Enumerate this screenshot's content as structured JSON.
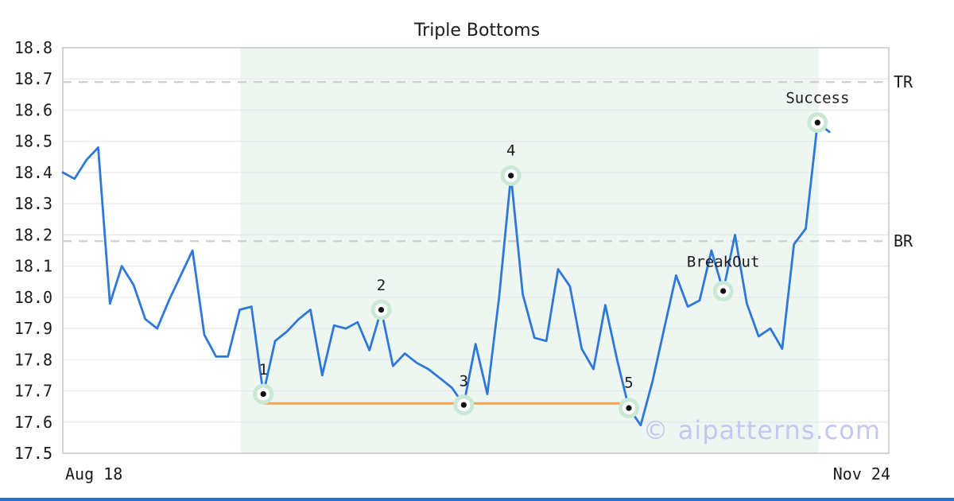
{
  "page": {
    "background": "#ffffff",
    "bottom_bar_color": "#2d72c8"
  },
  "watermark": {
    "text": "© aipatterns.com",
    "color": "#c6c6f4"
  },
  "chart_data": {
    "type": "line",
    "title": "Triple Bottoms",
    "x_tick_labels": [
      "Aug 18",
      "Nov 24"
    ],
    "y_ticks": [
      17.5,
      17.6,
      17.7,
      17.8,
      17.9,
      18.0,
      18.1,
      18.2,
      18.3,
      18.4,
      18.5,
      18.6,
      18.7,
      18.8
    ],
    "ylim": [
      17.5,
      18.8
    ],
    "grid": "horizontal",
    "x_end_frac": 0.928,
    "series": [
      {
        "name": "price",
        "color": "#2e78d9",
        "values": [
          18.4,
          18.38,
          18.44,
          18.48,
          17.98,
          18.1,
          18.04,
          17.93,
          17.9,
          17.99,
          18.07,
          18.15,
          17.88,
          17.81,
          17.81,
          17.96,
          17.97,
          17.69,
          17.86,
          17.89,
          17.93,
          17.96,
          17.75,
          17.91,
          17.9,
          17.92,
          17.83,
          17.96,
          17.78,
          17.82,
          17.79,
          17.77,
          17.74,
          17.71,
          17.655,
          17.85,
          17.69,
          18.0,
          18.39,
          18.01,
          17.87,
          17.86,
          18.09,
          18.035,
          17.835,
          17.77,
          17.975,
          17.8,
          17.645,
          17.59,
          17.73,
          17.9,
          18.07,
          17.97,
          17.99,
          18.15,
          18.02,
          18.2,
          17.98,
          17.875,
          17.9,
          17.835,
          18.17,
          18.22,
          18.56,
          18.53
        ]
      }
    ],
    "levels": [
      {
        "label": "TR",
        "value": 18.69
      },
      {
        "label": "BR",
        "value": 18.18
      }
    ],
    "support_line": {
      "value": 17.66,
      "from_index": 17,
      "to_index": 48,
      "color": "#f7a250"
    },
    "pattern_zone": {
      "from_frac": 0.215,
      "to_frac": 0.915,
      "color": "#edf6f1"
    },
    "annotations": [
      {
        "label": "1",
        "index": 17,
        "value": 17.69,
        "dy": -30
      },
      {
        "label": "2",
        "index": 27,
        "value": 17.96,
        "dy": -30
      },
      {
        "label": "3",
        "index": 34,
        "value": 17.655,
        "dy": -29
      },
      {
        "label": "4",
        "index": 38,
        "value": 18.39,
        "dy": -31
      },
      {
        "label": "5",
        "index": 48,
        "value": 17.645,
        "dy": -31
      },
      {
        "label": "BreakOut",
        "index": 56,
        "value": 18.02,
        "dy": -36
      },
      {
        "label": "Success",
        "index": 64,
        "value": 18.56,
        "dy": -30
      }
    ],
    "marker_style": {
      "outer_color": "#c9e9d5",
      "inner_color": "#ffffff",
      "dot_color": "#111111"
    },
    "style": {
      "grid_color": "#e8e8e8",
      "spine_color": "#c9c9c9",
      "dashed_color": "#cfcfcf",
      "text_color": "#1b1b1b"
    }
  }
}
